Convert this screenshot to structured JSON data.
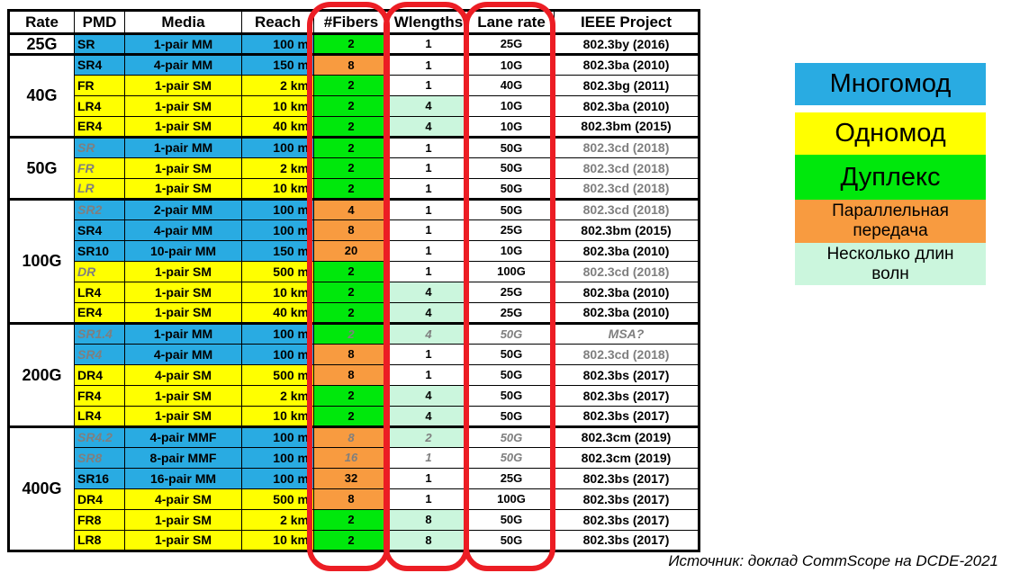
{
  "colors": {
    "blue": "#29ABE2",
    "yellow": "#FFFF00",
    "green": "#00E80C",
    "orange": "#F89B40",
    "mint": "#CBF6DD",
    "red": "#EC1D24",
    "gray": "#7F7F7F"
  },
  "table": {
    "headers": [
      "Rate",
      "PMD",
      "Media",
      "Reach",
      "#Fibers",
      "Wlengths",
      "Lane rate",
      "IEEE Project"
    ],
    "groups": [
      {
        "rate": "25G",
        "rows": [
          {
            "pmd": "SR",
            "media": "1-pair MM",
            "reach": "100 m",
            "mode": "mm",
            "fibers": "2",
            "fibers_type": "duplex",
            "wavelengths": "1",
            "lane_rate": "25G",
            "ieee": "802.3by (2016)"
          }
        ]
      },
      {
        "rate": "40G",
        "rows": [
          {
            "pmd": "SR4",
            "media": "4-pair MM",
            "reach": "150 m",
            "mode": "mm",
            "fibers": "8",
            "fibers_type": "parallel",
            "wavelengths": "1",
            "lane_rate": "10G",
            "ieee": "802.3ba (2010)"
          },
          {
            "pmd": "FR",
            "media": "1-pair SM",
            "reach": "2 km",
            "mode": "sm",
            "fibers": "2",
            "fibers_type": "duplex",
            "wavelengths": "1",
            "lane_rate": "40G",
            "ieee": "802.3bg (2011)"
          },
          {
            "pmd": "LR4",
            "media": "1-pair SM",
            "reach": "10 km",
            "mode": "sm",
            "fibers": "2",
            "fibers_type": "duplex",
            "wavelengths": "4",
            "wl_multi": true,
            "lane_rate": "10G",
            "ieee": "802.3ba (2010)"
          },
          {
            "pmd": "ER4",
            "media": "1-pair SM",
            "reach": "40 km",
            "mode": "sm",
            "fibers": "2",
            "fibers_type": "duplex",
            "wavelengths": "4",
            "wl_multi": true,
            "lane_rate": "10G",
            "ieee": "802.3bm (2015)"
          }
        ]
      },
      {
        "rate": "50G",
        "rows": [
          {
            "pmd": "SR",
            "media": "1-pair MM",
            "reach": "100 m",
            "mode": "mm",
            "fibers": "2",
            "fibers_type": "duplex",
            "wavelengths": "1",
            "lane_rate": "50G",
            "ieee": "802.3cd (2018)",
            "pmd_gray": true,
            "ieee_gray": true
          },
          {
            "pmd": "FR",
            "media": "1-pair SM",
            "reach": "2 km",
            "mode": "sm",
            "fibers": "2",
            "fibers_type": "duplex",
            "wavelengths": "1",
            "lane_rate": "50G",
            "ieee": "802.3cd (2018)",
            "pmd_gray": true,
            "ieee_gray": true
          },
          {
            "pmd": "LR",
            "media": "1-pair SM",
            "reach": "10 km",
            "mode": "sm",
            "fibers": "2",
            "fibers_type": "duplex",
            "wavelengths": "1",
            "lane_rate": "50G",
            "ieee": "802.3cd (2018)",
            "pmd_gray": true,
            "ieee_gray": true
          }
        ]
      },
      {
        "rate": "100G",
        "rows": [
          {
            "pmd": "SR2",
            "media": "2-pair MM",
            "reach": "100 m",
            "mode": "mm",
            "fibers": "4",
            "fibers_type": "parallel",
            "wavelengths": "1",
            "lane_rate": "50G",
            "ieee": "802.3cd (2018)",
            "pmd_gray": true,
            "ieee_gray": true
          },
          {
            "pmd": "SR4",
            "media": "4-pair MM",
            "reach": "100 m",
            "mode": "mm",
            "fibers": "8",
            "fibers_type": "parallel",
            "wavelengths": "1",
            "lane_rate": "25G",
            "ieee": "802.3bm (2015)"
          },
          {
            "pmd": "SR10",
            "media": "10-pair MM",
            "reach": "150 m",
            "mode": "mm",
            "fibers": "20",
            "fibers_type": "parallel",
            "wavelengths": "1",
            "lane_rate": "10G",
            "ieee": "802.3ba (2010)"
          },
          {
            "pmd": "DR",
            "media": "1-pair SM",
            "reach": "500 m",
            "mode": "sm",
            "fibers": "2",
            "fibers_type": "duplex",
            "wavelengths": "1",
            "lane_rate": "100G",
            "ieee": "802.3cd (2018)",
            "pmd_gray": true,
            "ieee_gray": true
          },
          {
            "pmd": "LR4",
            "media": "1-pair SM",
            "reach": "10 km",
            "mode": "sm",
            "fibers": "2",
            "fibers_type": "duplex",
            "wavelengths": "4",
            "wl_multi": true,
            "lane_rate": "25G",
            "ieee": "802.3ba (2010)"
          },
          {
            "pmd": "ER4",
            "media": "1-pair SM",
            "reach": "40 km",
            "mode": "sm",
            "fibers": "2",
            "fibers_type": "duplex",
            "wavelengths": "4",
            "wl_multi": true,
            "lane_rate": "25G",
            "ieee": "802.3ba (2010)"
          }
        ]
      },
      {
        "rate": "200G",
        "rows": [
          {
            "pmd": "SR1.4",
            "media": "1-pair MM",
            "reach": "100 m",
            "mode": "mm",
            "fibers": "2",
            "fibers_type": "duplex",
            "wavelengths": "4",
            "wl_multi": true,
            "lane_rate": "50G",
            "ieee": "MSA?",
            "pmd_gray": true,
            "values_gray": true,
            "ieee_gray": true,
            "ieee_italic": true
          },
          {
            "pmd": "SR4",
            "media": "4-pair MM",
            "reach": "100 m",
            "mode": "mm",
            "fibers": "8",
            "fibers_type": "parallel",
            "wavelengths": "1",
            "lane_rate": "50G",
            "ieee": "802.3cd (2018)",
            "pmd_gray": true,
            "ieee_gray": true
          },
          {
            "pmd": "DR4",
            "media": "4-pair SM",
            "reach": "500 m",
            "mode": "sm",
            "fibers": "8",
            "fibers_type": "parallel",
            "wavelengths": "1",
            "lane_rate": "50G",
            "ieee": "802.3bs (2017)"
          },
          {
            "pmd": "FR4",
            "media": "1-pair SM",
            "reach": "2 km",
            "mode": "sm",
            "fibers": "2",
            "fibers_type": "duplex",
            "wavelengths": "4",
            "wl_multi": true,
            "lane_rate": "50G",
            "ieee": "802.3bs (2017)"
          },
          {
            "pmd": "LR4",
            "media": "1-pair SM",
            "reach": "10 km",
            "mode": "sm",
            "fibers": "2",
            "fibers_type": "duplex",
            "wavelengths": "4",
            "wl_multi": true,
            "lane_rate": "50G",
            "ieee": "802.3bs (2017)"
          }
        ]
      },
      {
        "rate": "400G",
        "rows": [
          {
            "pmd": "SR4.2",
            "media": "4-pair MMF",
            "reach": "100 m",
            "mode": "mm",
            "fibers": "8",
            "fibers_type": "parallel",
            "wavelengths": "2",
            "wl_multi": true,
            "lane_rate": "50G",
            "ieee": "802.3cm (2019)",
            "pmd_gray": true,
            "values_gray": true
          },
          {
            "pmd": "SR8",
            "media": "8-pair MMF",
            "reach": "100 m",
            "mode": "mm",
            "fibers": "16",
            "fibers_type": "parallel",
            "wavelengths": "1",
            "lane_rate": "50G",
            "ieee": "802.3cm (2019)",
            "pmd_gray": true,
            "values_gray": true
          },
          {
            "pmd": "SR16",
            "media": "16-pair MM",
            "reach": "100 m",
            "mode": "mm",
            "fibers": "32",
            "fibers_type": "parallel",
            "wavelengths": "1",
            "lane_rate": "25G",
            "ieee": "802.3bs (2017)"
          },
          {
            "pmd": "DR4",
            "media": "4-pair SM",
            "reach": "500 m",
            "mode": "sm",
            "fibers": "8",
            "fibers_type": "parallel",
            "wavelengths": "1",
            "lane_rate": "100G",
            "ieee": "802.3bs (2017)"
          },
          {
            "pmd": "FR8",
            "media": "1-pair SM",
            "reach": "2 km",
            "mode": "sm",
            "fibers": "2",
            "fibers_type": "duplex",
            "wavelengths": "8",
            "wl_multi": true,
            "lane_rate": "50G",
            "ieee": "802.3bs (2017)"
          },
          {
            "pmd": "LR8",
            "media": "1-pair SM",
            "reach": "10 km",
            "mode": "sm",
            "fibers": "2",
            "fibers_type": "duplex",
            "wavelengths": "8",
            "wl_multi": true,
            "lane_rate": "50G",
            "ieee": "802.3bs (2017)"
          }
        ]
      }
    ]
  },
  "highlight": {
    "columns": [
      "#Fibers",
      "Wlengths",
      "Lane rate"
    ],
    "color": "#EC1D24"
  },
  "legend": {
    "items": [
      {
        "label": "Многомод",
        "color": "#29ABE2",
        "size": "big"
      },
      {
        "label": "Одномод",
        "color": "#FFFF00",
        "size": "big"
      },
      {
        "label": "Дуплекс",
        "color": "#00E80C",
        "size": "big"
      },
      {
        "label": "Параллельная передача",
        "color": "#F89B40",
        "size": "small"
      },
      {
        "label": "Несколько длин волн",
        "color": "#CBF6DD",
        "size": "small"
      }
    ]
  },
  "caption": "Источник: доклад CommScope на DCDE-2021"
}
